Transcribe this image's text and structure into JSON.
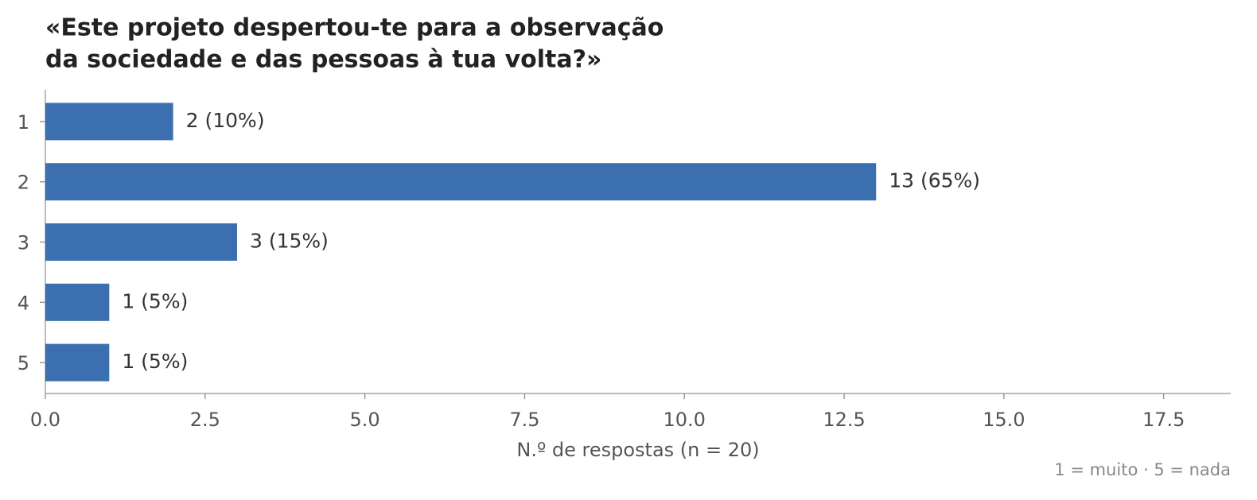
{
  "chart_data": {
    "type": "barh",
    "title": [
      "«Este projeto despertou-te para a observação",
      "da sociedade e das pessoas à tua volta?»"
    ],
    "categories": [
      "1",
      "2",
      "3",
      "4",
      "5"
    ],
    "values": [
      2,
      13,
      3,
      1,
      1
    ],
    "value_labels": [
      "2  (10%)",
      "13  (65%)",
      "3  (15%)",
      "1  (5%)",
      "1  (5%)"
    ],
    "color": "#3b6fb0",
    "xlim": [
      0,
      18.55
    ],
    "xticks": [
      {
        "value": 0,
        "label": "0.0"
      },
      2.5,
      {
        "value": 5,
        "label": "5.0"
      },
      7.5,
      {
        "value": 10,
        "label": "10.0"
      },
      12.5,
      {
        "value": 15,
        "label": "15.0"
      },
      17.5
    ],
    "xlabel": "N.º de respostas (n = 20)",
    "note": "1 = muito · 5 = nada"
  }
}
